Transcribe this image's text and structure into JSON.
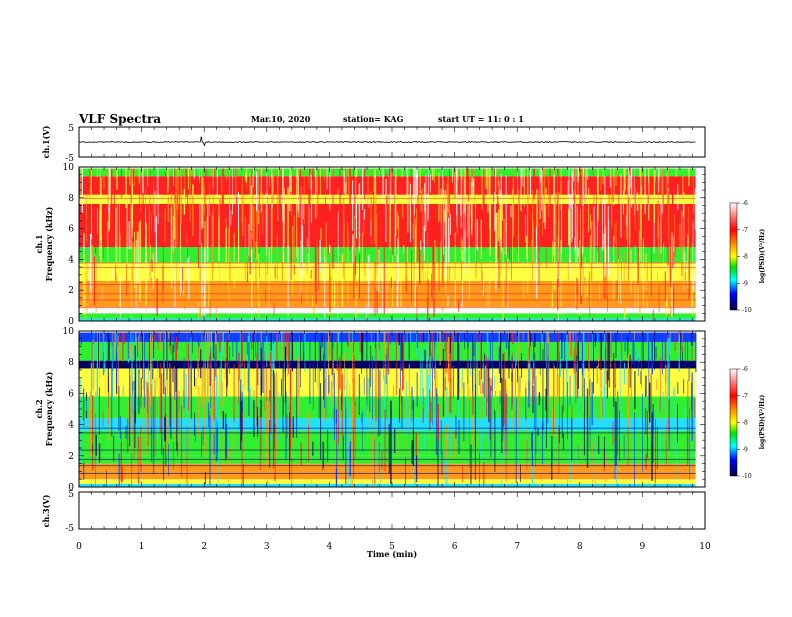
{
  "header": {
    "title": "VLF Spectra",
    "date": "Mar.10, 2020",
    "station": "station= KAG",
    "start_ut": "start  UT =   11: 0  : 1"
  },
  "colors": {
    "white": "#ffffff",
    "red": "#ff2020",
    "orange": "#ff9a1a",
    "yellow": "#ffff40",
    "green": "#30ee30",
    "cyan": "#20e0ff",
    "blue": "#1040ff",
    "navy": "#000060"
  },
  "chart_data": [
    {
      "type": "line",
      "name": "waveform-ch1",
      "ylabel": "ch.1(V)",
      "yticks": [
        "5",
        "-5"
      ],
      "ylim": [
        -5,
        5
      ],
      "xlim": [
        0,
        10
      ],
      "description_values": {
        "baseline": 0,
        "max_spike": 1.8,
        "min_spike": -1.2,
        "data_end_min": 9.85
      }
    },
    {
      "type": "heatmap",
      "name": "spectrogram-ch1",
      "ylabel_top": "ch.1",
      "ylabel": "Frequency (kHz)",
      "yticks": [
        "0",
        "2",
        "4",
        "6",
        "8",
        "10"
      ],
      "ylim": [
        0,
        10
      ],
      "xlim": [
        0,
        10
      ],
      "bands_khz": [
        {
          "from": 0.0,
          "to": 0.15,
          "level": "cyan"
        },
        {
          "from": 0.15,
          "to": 0.5,
          "level": "green"
        },
        {
          "from": 0.5,
          "to": 0.9,
          "level": "white"
        },
        {
          "from": 0.9,
          "to": 2.6,
          "level": "orange"
        },
        {
          "from": 2.6,
          "to": 3.8,
          "level": "yellow"
        },
        {
          "from": 3.8,
          "to": 4.8,
          "level": "green"
        },
        {
          "from": 4.8,
          "to": 7.6,
          "level": "red"
        },
        {
          "from": 7.6,
          "to": 8.2,
          "level": "yellow"
        },
        {
          "from": 8.2,
          "to": 9.4,
          "level": "red"
        },
        {
          "from": 9.4,
          "to": 9.9,
          "level": "green"
        }
      ],
      "colorbar": {
        "label": "log(PSD)(V²/Hz)",
        "ticks": [
          "-6",
          "-7",
          "-8",
          "-9",
          "-10"
        ]
      }
    },
    {
      "type": "heatmap",
      "name": "spectrogram-ch2",
      "ylabel_top": "ch.2",
      "ylabel": "Frequency (kHz)",
      "yticks": [
        "0",
        "2",
        "4",
        "6",
        "8",
        "10"
      ],
      "ylim": [
        0,
        10
      ],
      "xlim": [
        0,
        10
      ],
      "bands_khz": [
        {
          "from": 0.0,
          "to": 0.2,
          "level": "cyan"
        },
        {
          "from": 0.2,
          "to": 0.5,
          "level": "yellow"
        },
        {
          "from": 0.5,
          "to": 1.5,
          "level": "orange"
        },
        {
          "from": 1.5,
          "to": 2.0,
          "level": "green"
        },
        {
          "from": 2.0,
          "to": 3.6,
          "level": "green"
        },
        {
          "from": 3.6,
          "to": 4.4,
          "level": "cyan"
        },
        {
          "from": 4.4,
          "to": 5.8,
          "level": "green"
        },
        {
          "from": 5.8,
          "to": 7.6,
          "level": "yellow"
        },
        {
          "from": 7.6,
          "to": 8.1,
          "level": "navy"
        },
        {
          "from": 8.1,
          "to": 9.3,
          "level": "green"
        },
        {
          "from": 9.3,
          "to": 9.9,
          "level": "blue"
        }
      ],
      "colorbar": {
        "label": "log(PSD)(V²/Hz)",
        "ticks": [
          "-6",
          "-7",
          "-8",
          "-9",
          "-10"
        ]
      }
    },
    {
      "type": "line",
      "name": "waveform-ch3",
      "ylabel": "ch.3(V)",
      "yticks": [
        "5",
        "-5"
      ],
      "ylim": [
        -5,
        5
      ],
      "xlim": [
        0,
        10
      ]
    }
  ],
  "xaxis": {
    "label": "Time  (min)",
    "ticks": [
      "0",
      "1",
      "2",
      "3",
      "4",
      "5",
      "6",
      "7",
      "8",
      "9",
      "10"
    ]
  }
}
